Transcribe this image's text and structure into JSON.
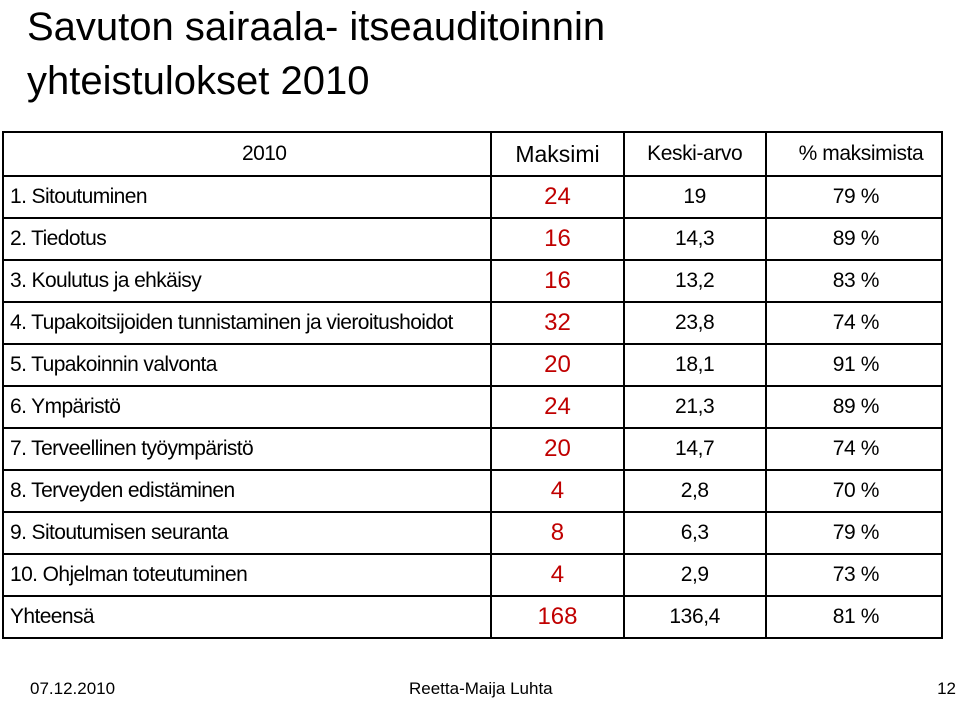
{
  "title": {
    "line1": "Savuton sairaala- itseauditoinnin",
    "line2": "yhteistulokset 2010"
  },
  "table": {
    "headers": {
      "name": "2010",
      "max": "Maksimi",
      "avg": "Keski-arvo",
      "pct": "% maksimista"
    },
    "rows": [
      {
        "name": "1. Sitoutuminen",
        "max": "24",
        "avg": "19",
        "pct": "79 %"
      },
      {
        "name": "2. Tiedotus",
        "max": "16",
        "avg": "14,3",
        "pct": "89 %"
      },
      {
        "name": "3. Koulutus ja ehkäisy",
        "max": "16",
        "avg": "13,2",
        "pct": "83 %"
      },
      {
        "name": "4. Tupakoitsijoiden tunnistaminen ja vieroitushoidot",
        "max": "32",
        "avg": "23,8",
        "pct": "74 %"
      },
      {
        "name": "5. Tupakoinnin valvonta",
        "max": "20",
        "avg": "18,1",
        "pct": "91 %"
      },
      {
        "name": "6. Ympäristö",
        "max": "24",
        "avg": "21,3",
        "pct": "89 %"
      },
      {
        "name": "7. Terveellinen työympäristö",
        "max": "20",
        "avg": "14,7",
        "pct": "74 %"
      },
      {
        "name": "8. Terveyden edistäminen",
        "max": "4",
        "avg": "2,8",
        "pct": "70 %"
      },
      {
        "name": "9. Sitoutumisen seuranta",
        "max": "8",
        "avg": "6,3",
        "pct": "79 %"
      },
      {
        "name": "10. Ohjelman toteutuminen",
        "max": "4",
        "avg": "2,9",
        "pct": "73 %"
      },
      {
        "name": "Yhteensä",
        "max": "168",
        "avg": "136,4",
        "pct": "81 %"
      }
    ]
  },
  "footer": {
    "date": "07.12.2010",
    "author": "Reetta-Maija Luhta",
    "page": "12"
  },
  "colors": {
    "max_value": "#c00000",
    "text": "#000000",
    "border": "#000000"
  }
}
